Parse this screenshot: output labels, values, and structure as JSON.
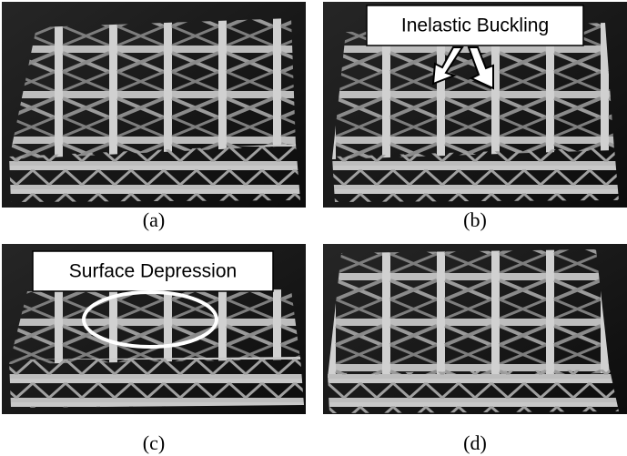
{
  "panels": [
    {
      "label": "(a)"
    },
    {
      "label": "(b)",
      "annotation": "Inelastic Buckling"
    },
    {
      "label": "(c)",
      "annotation": "Surface Depression"
    },
    {
      "label": "(d)"
    }
  ]
}
